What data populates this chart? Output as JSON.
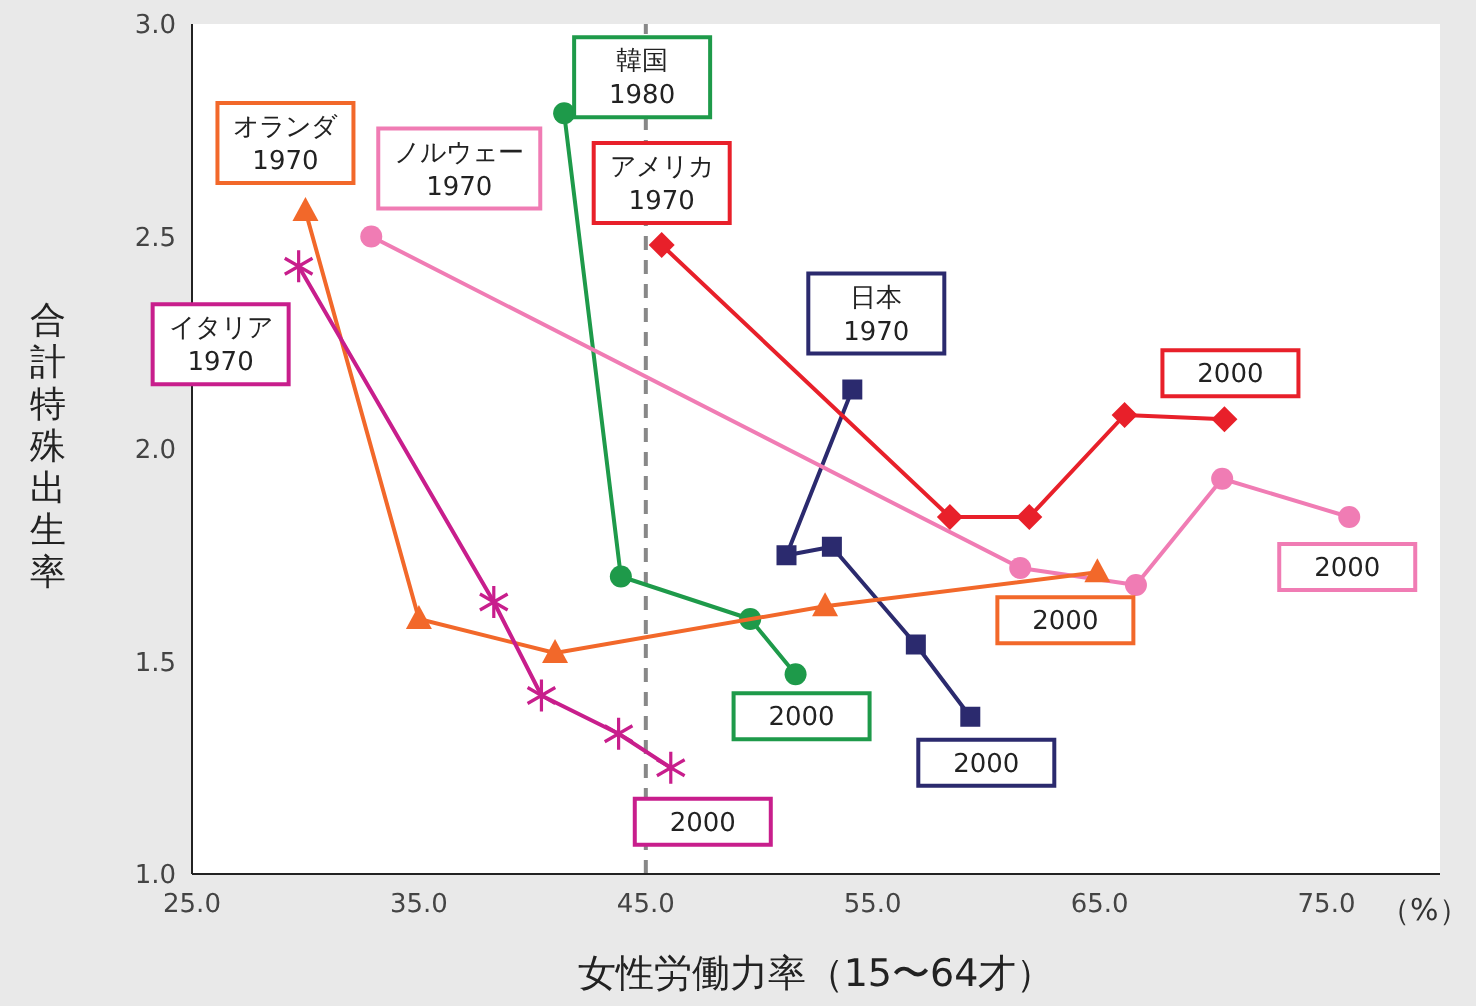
{
  "chart_data": {
    "type": "line",
    "xlabel": "女性労働力率（15〜64才）",
    "ylabel": "合計特殊出生率",
    "xlim": [
      25,
      80
    ],
    "xticks": [
      {
        "value": 25,
        "label": "25.0"
      },
      {
        "value": 35,
        "label": "35.0"
      },
      {
        "value": 45,
        "label": "45.0"
      },
      {
        "value": 55,
        "label": "55.0"
      },
      {
        "value": 65,
        "label": "65.0"
      },
      {
        "value": 75,
        "label": "75.0"
      }
    ],
    "ylim": [
      1,
      3
    ],
    "yticks": [
      {
        "value": 1,
        "label": "1.0"
      },
      {
        "value": 1.5,
        "label": "1.5"
      },
      {
        "value": 2,
        "label": "2.0"
      },
      {
        "value": 2.5,
        "label": "2.5"
      },
      {
        "value": 3,
        "label": "3.0"
      }
    ],
    "grid": false,
    "legend": false,
    "series": [
      {
        "color": "#1e9a4a",
        "marker": "circle",
        "x": [
          41.4,
          43.9,
          49.6,
          51.6
        ],
        "values": [
          2.79,
          1.7,
          1.6,
          1.47
        ]
      },
      {
        "color": "#2b2a6e",
        "marker": "square",
        "x": [
          54.1,
          51.2,
          53.2,
          56.9,
          59.3
        ],
        "values": [
          2.14,
          1.75,
          1.77,
          1.54,
          1.37
        ]
      },
      {
        "color": "#e8202a",
        "marker": "diamond",
        "x": [
          45.7,
          58.4,
          61.9,
          66.1,
          70.5
        ],
        "values": [
          2.48,
          1.84,
          1.84,
          2.08,
          2.07
        ]
      },
      {
        "color": "#f07cb4",
        "marker": "circle",
        "x": [
          32.9,
          61.5,
          66.6,
          70.4,
          76.0
        ],
        "values": [
          2.5,
          1.72,
          1.68,
          1.93,
          1.84
        ]
      },
      {
        "color": "#f2682a",
        "marker": "triangle",
        "x": [
          30.0,
          35.0,
          41.0,
          52.9,
          64.9
        ],
        "values": [
          2.56,
          1.6,
          1.52,
          1.63,
          1.71
        ]
      },
      {
        "color": "#c81e8c",
        "marker": "cross",
        "x": [
          29.7,
          38.3,
          40.4,
          43.8,
          46.1
        ],
        "values": [
          2.43,
          1.64,
          1.42,
          1.33,
          1.25
        ]
      }
    ],
    "ref_lines": [
      {
        "axis": "x",
        "value": 45,
        "color": "#888888",
        "line_style": "dashed"
      }
    ],
    "annotations": [
      {
        "text": "オランダ\n1970",
        "x": 30.0,
        "y": 2.56
      },
      {
        "text": "ノルウェー\n1970",
        "x": 32.9,
        "y": 2.5
      },
      {
        "text": "イタリア\n1970",
        "x": 29.7,
        "y": 2.43
      },
      {
        "text": "韓国\n1980",
        "x": 41.4,
        "y": 2.79
      },
      {
        "text": "アメリカ\n1970",
        "x": 45.7,
        "y": 2.48
      },
      {
        "text": "日本\n1970",
        "x": 54.1,
        "y": 2.14
      },
      {
        "text": "2000",
        "x": 70.5,
        "y": 2.07
      },
      {
        "text": "2000",
        "x": 76.0,
        "y": 1.84
      },
      {
        "text": "2000",
        "x": 64.9,
        "y": 1.71
      },
      {
        "text": "2000",
        "x": 51.6,
        "y": 1.47
      },
      {
        "text": "2000",
        "x": 59.3,
        "y": 1.37
      },
      {
        "text": "2000",
        "x": 46.1,
        "y": 1.25
      },
      "（%）"
    ]
  }
}
